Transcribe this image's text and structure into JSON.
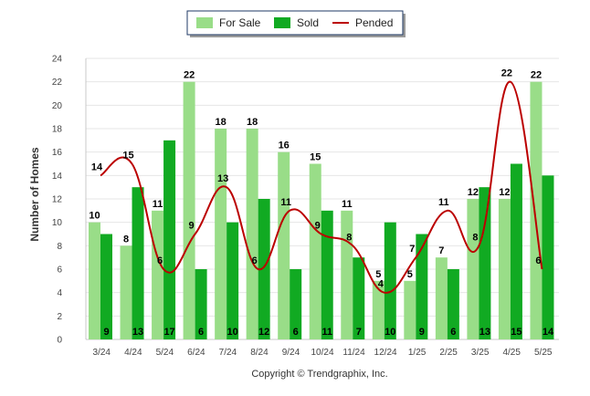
{
  "chart_data": {
    "type": "bar",
    "title": "",
    "xlabel": "",
    "ylabel": "Number of Homes",
    "ylim": [
      0,
      24
    ],
    "yticks": [
      0,
      2,
      4,
      6,
      8,
      10,
      12,
      14,
      16,
      18,
      20,
      22,
      24
    ],
    "grid": true,
    "legend_position": "top-center",
    "categories": [
      "3/24",
      "4/24",
      "5/24",
      "6/24",
      "7/24",
      "8/24",
      "9/24",
      "10/24",
      "11/24",
      "12/24",
      "1/25",
      "2/25",
      "3/25",
      "4/25",
      "5/25"
    ],
    "series": [
      {
        "name": "For Sale",
        "type": "bar",
        "color": "#99dd88",
        "values": [
          10,
          8,
          11,
          22,
          18,
          18,
          16,
          15,
          11,
          5,
          5,
          7,
          12,
          12,
          22
        ]
      },
      {
        "name": "Sold",
        "type": "bar",
        "color": "#11aa22",
        "values": [
          9,
          13,
          17,
          6,
          10,
          12,
          6,
          11,
          7,
          10,
          9,
          6,
          13,
          15,
          14
        ]
      },
      {
        "name": "Pended",
        "type": "line",
        "color": "#bb0000",
        "values": [
          14,
          15,
          6,
          9,
          13,
          6,
          11,
          9,
          8,
          4,
          7,
          11,
          8,
          22,
          6
        ]
      }
    ]
  },
  "copyright": "Copyright © Trendgraphix, Inc."
}
